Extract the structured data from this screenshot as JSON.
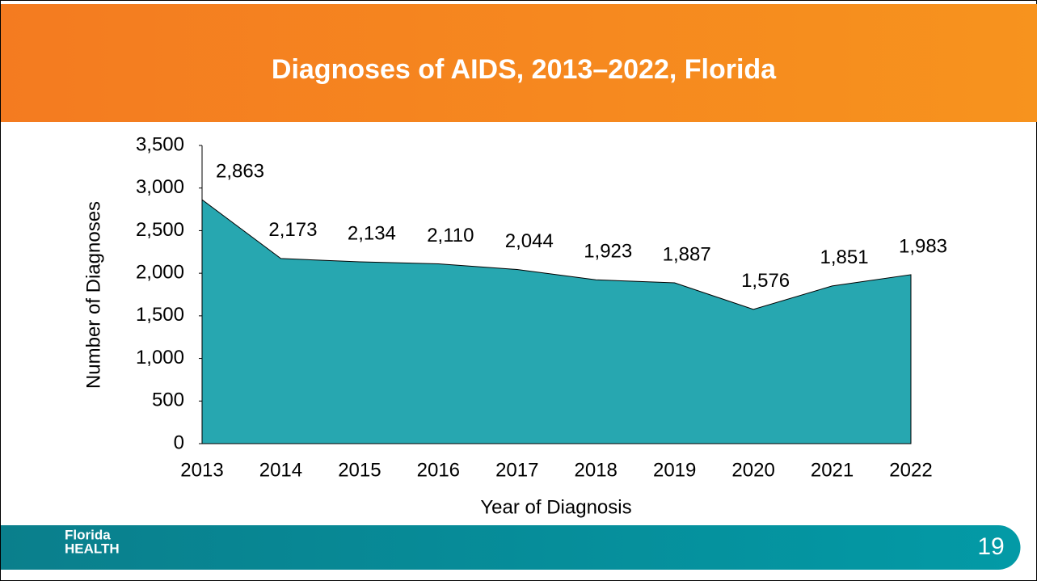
{
  "chart_data": {
    "type": "area",
    "title": "Diagnoses of AIDS, 2013–2022, Florida",
    "x_label": "Year of Diagnosis",
    "y_label": "Number of Diagnoses",
    "categories": [
      "2013",
      "2014",
      "2015",
      "2016",
      "2017",
      "2018",
      "2019",
      "2020",
      "2021",
      "2022"
    ],
    "values": [
      2863,
      2173,
      2134,
      2110,
      2044,
      1923,
      1887,
      1576,
      1851,
      1983
    ],
    "value_labels": [
      "2,863",
      "2,173",
      "2,134",
      "2,110",
      "2,044",
      "1,923",
      "1,887",
      "1,576",
      "1,851",
      "1,983"
    ],
    "color": "#27a7b0",
    "ylim": [
      0,
      3500
    ],
    "yticks": [
      0,
      500,
      {
        "value": 1000,
        "label": "1,000"
      },
      {
        "value": 1500,
        "label": "1,500"
      },
      {
        "value": 2000,
        "label": "2,000"
      },
      {
        "value": 2500,
        "label": "2,500"
      },
      {
        "value": 3000,
        "label": "3,000"
      },
      {
        "value": 3500,
        "label": "3,500"
      }
    ]
  },
  "footer": {
    "logo": [
      "Florida",
      "HEALTH"
    ],
    "page_number": "19"
  }
}
